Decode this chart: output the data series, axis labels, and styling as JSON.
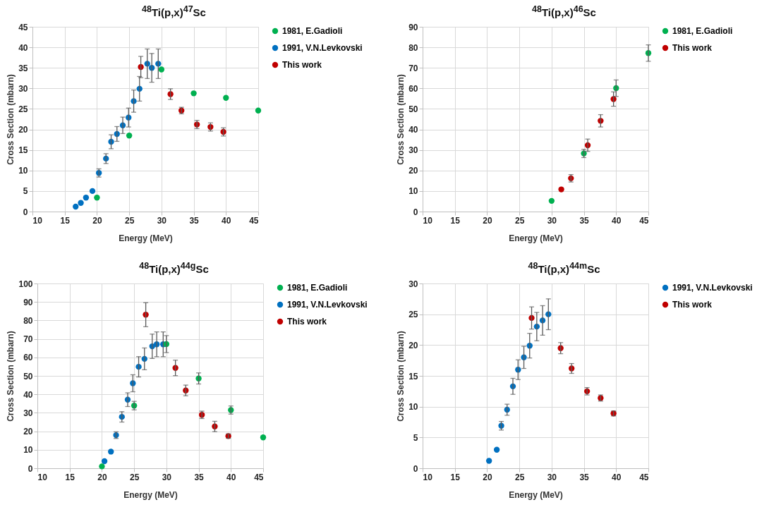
{
  "chart_data": [
    {
      "type": "scatter",
      "title": "$^{48}$Ti(p,x)$^{47}$Sc",
      "xlabel": "Energy (MeV)",
      "ylabel": "Cross Section (mbarn)",
      "xlim": [
        10,
        45
      ],
      "xticks": [
        10,
        15,
        20,
        25,
        30,
        35,
        40,
        45
      ],
      "ylim": [
        0,
        45
      ],
      "yticks": [
        0,
        5,
        10,
        15,
        20,
        25,
        30,
        35,
        40,
        45
      ],
      "grid": true,
      "legend": "right",
      "marker": "circle",
      "series": [
        {
          "name": "1981, E.Gadioli",
          "color": "#00b050",
          "x": [
            20.0,
            25.0,
            30.0,
            35.0,
            40.0,
            45.0
          ],
          "values": [
            3.4,
            18.5,
            34.6,
            28.8,
            27.7,
            24.6
          ]
        },
        {
          "name": "1991, V.N.Levkovski",
          "color": "#0070c0",
          "x": [
            16.7,
            17.5,
            18.3,
            19.3,
            20.3,
            21.4,
            22.2,
            23.1,
            24.0,
            24.9,
            25.7,
            26.6,
            27.8,
            28.5,
            29.5
          ],
          "values": [
            1.2,
            2.1,
            3.4,
            5.0,
            9.4,
            12.9,
            17.0,
            18.9,
            21.0,
            22.9,
            26.9,
            29.9,
            36.0,
            35.0,
            36.0
          ],
          "errors": [
            null,
            null,
            null,
            null,
            1,
            1.2,
            1.7,
            1.8,
            2,
            2.3,
            2.7,
            3,
            3.6,
            3.5,
            3.6
          ]
        },
        {
          "name": "This work",
          "color": "#c00000",
          "x": [
            26.8,
            31.4,
            33.1,
            35.5,
            37.6,
            39.6
          ],
          "values": [
            35.2,
            28.6,
            24.6,
            21.2,
            20.6,
            19.4
          ],
          "errors": [
            2.6,
            1.3,
            0.8,
            1,
            1,
            1
          ]
        }
      ]
    },
    {
      "type": "scatter",
      "title": "$^{48}$Ti(p,x)$^{46}$Sc",
      "xlabel": "Energy (MeV)",
      "ylabel": "Cross Section (mbarn)",
      "xlim": [
        10,
        45
      ],
      "xticks": [
        10,
        15,
        20,
        25,
        30,
        35,
        40,
        45
      ],
      "ylim": [
        0,
        90
      ],
      "yticks": [
        0,
        10,
        20,
        30,
        40,
        50,
        60,
        70,
        80,
        90
      ],
      "grid": true,
      "legend": "right",
      "marker": "circle",
      "series": [
        {
          "name": "1981, E.Gadioli",
          "color": "#00b050",
          "x": [
            30.0,
            35.0,
            40.0,
            45.0
          ],
          "values": [
            5.2,
            28.3,
            60.1,
            77.2
          ],
          "errors": [
            null,
            2,
            4,
            4
          ]
        },
        {
          "name": "This work",
          "color": "#c00000",
          "x": [
            31.5,
            33.0,
            35.6,
            37.6,
            39.6
          ],
          "values": [
            10.8,
            16.2,
            32.3,
            44.2,
            54.8
          ],
          "errors": [
            null,
            1.8,
            3,
            3,
            3.5
          ]
        }
      ]
    },
    {
      "type": "scatter",
      "title": "$^{48}$Ti(p,x)$^{44g}$Sc",
      "xlabel": "Energy (MeV)",
      "ylabel": "Cross Section (mbarn)",
      "xlim": [
        10,
        45
      ],
      "xticks": [
        10,
        15,
        20,
        25,
        30,
        35,
        40,
        45
      ],
      "ylim": [
        0,
        100
      ],
      "yticks": [
        0,
        10,
        20,
        30,
        40,
        50,
        60,
        70,
        80,
        90,
        100
      ],
      "grid": true,
      "legend": "right",
      "marker": "circle",
      "series": [
        {
          "name": "1981, E.Gadioli",
          "color": "#00b050",
          "x": [
            20.0,
            25.0,
            30.0,
            35.0,
            40.0,
            45.0
          ],
          "values": [
            1.0,
            33.9,
            67.2,
            48.6,
            31.5,
            16.7
          ],
          "errors": [
            null,
            2.3,
            4.6,
            3,
            2.2,
            null
          ]
        },
        {
          "name": "1991, V.N.Levkovski",
          "color": "#0070c0",
          "x": [
            20.4,
            21.4,
            22.2,
            23.1,
            24.0,
            24.8,
            25.7,
            26.6,
            27.8,
            28.5,
            29.5
          ],
          "values": [
            3.8,
            9.0,
            17.9,
            27.8,
            37.1,
            46.0,
            54.9,
            59.2,
            66.0,
            67.1,
            67.1
          ],
          "errors": [
            null,
            null,
            1.8,
            2.8,
            3.7,
            4.6,
            5.5,
            5.9,
            6.6,
            6.7,
            6.7
          ]
        },
        {
          "name": "This work",
          "color": "#c00000",
          "x": [
            26.8,
            31.4,
            33.0,
            35.5,
            37.5,
            39.6
          ],
          "values": [
            83.1,
            54.3,
            42.1,
            28.9,
            22.6,
            17.4
          ],
          "errors": [
            6.5,
            4.2,
            2.9,
            2,
            2.8,
            1.2
          ]
        }
      ]
    },
    {
      "type": "scatter",
      "title": "$^{48}$Ti(p,x)$^{44m}$Sc",
      "xlabel": "Energy (MeV)",
      "ylabel": "Cross Section (mbarn)",
      "xlim": [
        10,
        45
      ],
      "xticks": [
        10,
        15,
        20,
        25,
        30,
        35,
        40,
        45
      ],
      "ylim": [
        0,
        30
      ],
      "yticks": [
        0,
        5,
        10,
        15,
        20,
        25,
        30
      ],
      "grid": true,
      "legend": "right",
      "marker": "circle",
      "series": [
        {
          "name": "1991, V.N.Levkovski",
          "color": "#0070c0",
          "x": [
            20.3,
            21.5,
            22.2,
            23.1,
            24.0,
            24.8,
            25.7,
            26.6,
            27.7,
            28.6,
            29.5
          ],
          "values": [
            1.2,
            3.0,
            6.9,
            9.5,
            13.3,
            16.0,
            18.0,
            19.9,
            23.0,
            24.0,
            25.0
          ],
          "errors": [
            null,
            null,
            0.7,
            0.9,
            1.3,
            1.6,
            1.8,
            2,
            2.3,
            2.4,
            2.5
          ]
        },
        {
          "name": "This work",
          "color": "#c00000",
          "x": [
            26.9,
            31.4,
            33.1,
            35.5,
            37.6,
            39.6
          ],
          "values": [
            24.4,
            19.5,
            16.2,
            12.5,
            11.4,
            8.9
          ],
          "errors": [
            1.8,
            0.9,
            0.8,
            0.6,
            0.5,
            0.4
          ]
        }
      ]
    }
  ]
}
